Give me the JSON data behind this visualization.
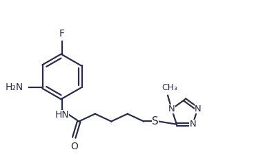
{
  "bg_color": "#ffffff",
  "line_color": "#2b2b4b",
  "bond_lw": 1.6,
  "font_size": 9.5,
  "fig_width": 3.71,
  "fig_height": 2.37,
  "dpi": 100,
  "xlim": [
    0.0,
    7.8
  ],
  "ylim": [
    0.5,
    5.2
  ]
}
